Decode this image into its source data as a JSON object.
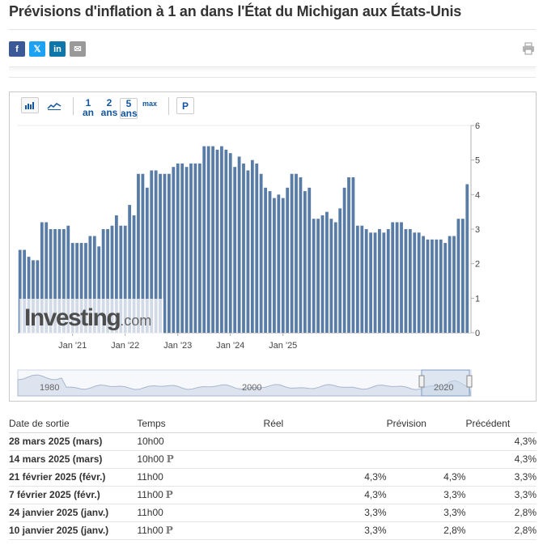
{
  "page": {
    "title": "Prévisions d'inflation à 1 an dans l'État du Michigan aux États-Unis"
  },
  "share": {
    "facebook_icon": "f",
    "twitter_icon": "𝕏",
    "linkedin_icon": "in",
    "mail_icon": "✉"
  },
  "toolbar": {
    "ranges": [
      {
        "n": "1",
        "u": "an"
      },
      {
        "n": "2",
        "u": "ans"
      },
      {
        "n": "5",
        "u": "ans"
      }
    ],
    "max_label": "max",
    "p_label": "P"
  },
  "chart_data": {
    "type": "bar",
    "watermark": "Investing.com",
    "x_tick_labels": [
      "Jan '21",
      "Jan '22",
      "Jan '23",
      "Jan '24",
      "Jan '25"
    ],
    "ylim": [
      0,
      6
    ],
    "y_ticks": [
      "0",
      "1",
      "2",
      "3",
      "4",
      "5",
      "6"
    ],
    "start_month": "2020-01",
    "values": [
      2.4,
      2.4,
      2.2,
      2.1,
      2.1,
      3.2,
      3.2,
      3.0,
      3.0,
      3.0,
      3.0,
      3.1,
      2.6,
      2.6,
      2.6,
      2.6,
      2.8,
      2.8,
      2.5,
      3.0,
      3.0,
      3.1,
      3.4,
      3.1,
      3.1,
      3.7,
      3.4,
      4.6,
      4.6,
      4.2,
      4.7,
      4.7,
      4.6,
      4.6,
      4.6,
      4.8,
      4.9,
      4.9,
      4.8,
      4.9,
      4.9,
      4.9,
      5.4,
      5.4,
      5.4,
      5.3,
      5.4,
      5.3,
      5.2,
      4.8,
      5.1,
      4.9,
      4.7,
      5.0,
      4.9,
      4.6,
      4.2,
      4.1,
      3.9,
      4.0,
      3.9,
      4.2,
      4.6,
      4.6,
      4.5,
      4.1,
      4.2,
      3.3,
      3.3,
      3.4,
      3.5,
      3.3,
      3.2,
      3.6,
      4.2,
      4.5,
      4.5,
      3.1,
      3.1,
      3.0,
      2.9,
      2.9,
      3.0,
      2.9,
      3.0,
      3.2,
      3.2,
      3.2,
      3.0,
      3.0,
      2.9,
      2.9,
      2.8,
      2.7,
      2.7,
      2.7,
      2.7,
      2.6,
      2.8,
      2.8,
      3.3,
      3.3,
      4.3
    ],
    "navigator": {
      "labels": [
        "1980",
        "2000",
        "2020"
      ]
    }
  },
  "table": {
    "headers": [
      "Date de sortie",
      "Temps",
      "Réel",
      "Prévision",
      "Précédent"
    ],
    "rows": [
      {
        "date": "28 mars 2025 (mars)",
        "time": "10h00",
        "p": "",
        "reel": "",
        "prev": "",
        "prec": "4,3%",
        "green": false
      },
      {
        "date": "14 mars 2025 (mars)",
        "time": "10h00",
        "p": "P",
        "reel": "",
        "prev": "",
        "prec": "4,3%",
        "green": false
      },
      {
        "date": "21 février 2025 (févr.)",
        "time": "11h00",
        "p": "",
        "reel": "4,3%",
        "prev": "4,3%",
        "prec": "3,3%",
        "green": false
      },
      {
        "date": "7 février 2025 (févr.)",
        "time": "11h00",
        "p": "P",
        "reel": "4,3%",
        "prev": "3,3%",
        "prec": "3,3%",
        "green": true
      },
      {
        "date": "24 janvier 2025 (janv.)",
        "time": "11h00",
        "p": "",
        "reel": "3,3%",
        "prev": "3,3%",
        "prec": "2,8%",
        "green": false
      },
      {
        "date": "10 janvier 2025 (janv.)",
        "time": "11h00",
        "p": "P",
        "reel": "3,3%",
        "prev": "2,8%",
        "prec": "2,8%",
        "green": true
      }
    ]
  }
}
